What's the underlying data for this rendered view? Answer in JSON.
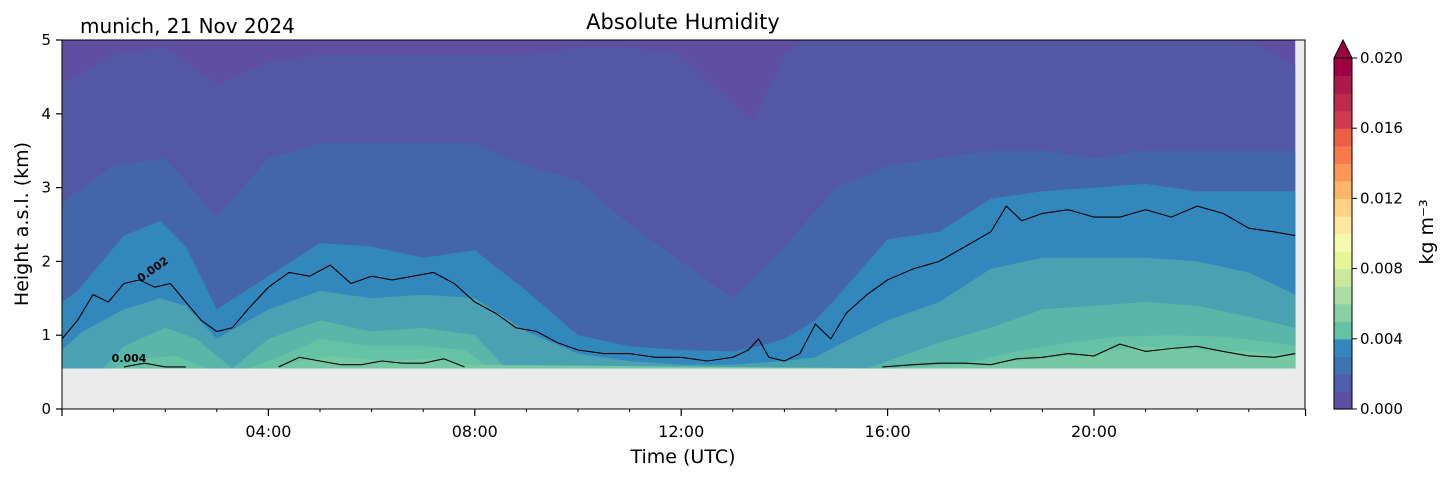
{
  "location_date": "munich, 21 Nov 2024",
  "chart_data": {
    "type": "contour",
    "title": "Absolute Humidity",
    "xlabel": "Time (UTC)",
    "ylabel": "Height a.s.l. (km)",
    "xlim_hours": [
      0,
      24.15
    ],
    "ylim": [
      0,
      5
    ],
    "x_ticks": [
      "04:00",
      "08:00",
      "12:00",
      "16:00",
      "20:00"
    ],
    "y_ticks": [
      "0",
      "1",
      "2",
      "3",
      "4",
      "5"
    ],
    "min_data_height_km": 0.55,
    "colorbar": {
      "label": "kg m⁻³",
      "min": 0,
      "max": 0.02,
      "ticks": [
        "0.000",
        "0.004",
        "0.008",
        "0.012",
        "0.016",
        "0.020"
      ],
      "extend": "max",
      "colormap": "Spectral_r"
    },
    "fill_colors": [
      "#5e4fa2",
      "#5357a6",
      "#4565ab",
      "#3579b4",
      "#3288bd",
      "#4aa1b1",
      "#66c2a5"
    ],
    "no_data_color": "#ebebeb",
    "fill_bands": [
      {
        "level": 0.0015,
        "x_hours": [
          0,
          0.3,
          1.2,
          1.9,
          2.4,
          3.0,
          4.0,
          5.0,
          6.0,
          7.0,
          8.0,
          9.0,
          10.0,
          11.0,
          12.0,
          13.0,
          13.5,
          14.0,
          14.6,
          15.0,
          16.0,
          17.0,
          18.0,
          19.0,
          20.0,
          21.0,
          22.0,
          23.0,
          23.9
        ],
        "y_km": [
          1.45,
          1.6,
          2.35,
          2.55,
          2.2,
          1.35,
          1.8,
          2.25,
          2.2,
          2.05,
          2.15,
          1.6,
          1.0,
          0.85,
          0.8,
          0.78,
          0.85,
          0.95,
          1.2,
          1.5,
          2.3,
          2.4,
          2.85,
          2.95,
          3.0,
          3.05,
          2.95,
          2.95,
          2.95
        ]
      },
      {
        "level": 0.0025,
        "x_hours": [
          0,
          0.4,
          1.2,
          1.9,
          2.4,
          3.0,
          4.0,
          5.0,
          6.0,
          7.0,
          8.0,
          9.0,
          10.0,
          11.0,
          12.0,
          13.0,
          14.0,
          14.6,
          15.0,
          16.0,
          17.0,
          18.0,
          19.0,
          20.0,
          21.0,
          22.0,
          23.0,
          23.9
        ],
        "y_km": [
          0.8,
          1.05,
          1.35,
          1.5,
          1.4,
          0.95,
          1.35,
          1.6,
          1.5,
          1.55,
          1.5,
          1.05,
          0.75,
          0.65,
          0.6,
          0.6,
          0.65,
          0.7,
          0.85,
          1.2,
          1.45,
          1.9,
          2.05,
          2.05,
          2.05,
          2.0,
          1.85,
          1.55
        ]
      },
      {
        "level": 0.0035,
        "x_hours": [
          0.8,
          1.2,
          2.0,
          2.6,
          3.3,
          4.0,
          5.0,
          6.0,
          7.0,
          8.0,
          8.6,
          15.6,
          16.2,
          17.0,
          18.0,
          19.0,
          20.0,
          21.0,
          22.0,
          23.0,
          23.9
        ],
        "y_km": [
          0.55,
          0.85,
          1.1,
          0.95,
          0.55,
          0.95,
          1.2,
          1.05,
          1.1,
          1.0,
          0.55,
          0.55,
          0.7,
          0.9,
          1.1,
          1.35,
          1.4,
          1.45,
          1.4,
          1.25,
          1.1
        ]
      },
      {
        "level": 0.0045,
        "x_hours": [
          1.0,
          1.5,
          2.2,
          2.8,
          3.6,
          4.2,
          5.0,
          6.0,
          7.0,
          7.8,
          8.3,
          15.9,
          16.5,
          17.5,
          18.5,
          19.5,
          20.5,
          21.5,
          22.5,
          23.5,
          23.9
        ],
        "y_km": [
          0.55,
          0.68,
          0.72,
          0.55,
          0.55,
          0.7,
          0.95,
          0.85,
          0.85,
          0.8,
          0.55,
          0.55,
          0.58,
          0.62,
          0.78,
          0.9,
          0.98,
          1.0,
          0.98,
          0.9,
          0.85
        ]
      },
      {
        "level": 0.0055,
        "x_hours": [
          4.2,
          4.6,
          5.2,
          6.2,
          7.2,
          7.9,
          16.2,
          17.0,
          18.0,
          19.0,
          20.0,
          21.0,
          22.0,
          23.0,
          23.9
        ],
        "y_km": [
          0.55,
          0.65,
          0.72,
          0.65,
          0.68,
          0.6,
          0.55,
          0.58,
          0.62,
          0.68,
          0.75,
          0.85,
          0.8,
          0.78,
          0.72
        ]
      },
      {
        "level": 0.0012,
        "x_hours": [
          0,
          1.0,
          2.0,
          3.0,
          4.0,
          5.0,
          6.0,
          7.0,
          8.0,
          9.0,
          10.0,
          11.0,
          12.0,
          13.0,
          14.0,
          15.0,
          16.0,
          17.0,
          18.0,
          19.0,
          20.0,
          21.0,
          22.0,
          23.0,
          23.9
        ],
        "y_km": [
          2.8,
          3.3,
          3.4,
          2.6,
          3.4,
          3.6,
          3.6,
          3.6,
          3.6,
          3.3,
          3.1,
          2.5,
          2.0,
          1.5,
          2.2,
          3.0,
          3.3,
          3.4,
          3.5,
          3.5,
          3.4,
          3.5,
          3.5,
          3.5,
          3.5
        ]
      },
      {
        "level": 0.0008,
        "x_hours": [
          0,
          1.0,
          2.0,
          3.0,
          4.0,
          5.0,
          6.0,
          7.0,
          8.0,
          9.0,
          10.0,
          11.0,
          12.0,
          12.6,
          13.4,
          14.0,
          14.4,
          15.0,
          16.0,
          17.0,
          18.0,
          19.0,
          20.0,
          21.0,
          22.0,
          23.0,
          23.9
        ],
        "y_km": [
          4.4,
          4.8,
          4.9,
          4.4,
          4.7,
          4.8,
          4.8,
          4.8,
          4.8,
          4.8,
          4.9,
          4.9,
          4.8,
          4.4,
          3.9,
          4.8,
          5.0,
          5.0,
          5.0,
          5.0,
          5.0,
          5.0,
          5.0,
          5.0,
          5.0,
          5.0,
          4.65
        ]
      }
    ],
    "contour_lines": [
      {
        "label": "0.002",
        "x_hours": [
          0,
          0.3,
          0.6,
          0.9,
          1.2,
          1.5,
          1.8,
          2.1,
          2.4,
          2.7,
          3.0,
          3.3,
          3.6,
          4.0,
          4.4,
          4.8,
          5.2,
          5.6,
          6.0,
          6.4,
          6.8,
          7.2,
          7.6,
          8.0,
          8.4,
          8.8,
          9.2,
          9.6,
          10.0,
          10.5,
          11.0,
          11.5,
          12.0,
          12.5,
          13.0,
          13.3,
          13.5,
          13.7,
          14.0,
          14.3,
          14.6,
          14.9,
          15.2,
          15.6,
          16.0,
          16.5,
          17.0,
          17.5,
          18.0,
          18.3,
          18.6,
          19.0,
          19.5,
          20.0,
          20.5,
          21.0,
          21.5,
          22.0,
          22.5,
          23.0,
          23.5,
          23.9
        ],
        "y_km": [
          0.95,
          1.2,
          1.55,
          1.45,
          1.7,
          1.75,
          1.65,
          1.7,
          1.45,
          1.2,
          1.05,
          1.1,
          1.35,
          1.65,
          1.85,
          1.8,
          1.95,
          1.7,
          1.8,
          1.75,
          1.8,
          1.85,
          1.7,
          1.45,
          1.3,
          1.1,
          1.05,
          0.9,
          0.8,
          0.75,
          0.75,
          0.7,
          0.7,
          0.65,
          0.7,
          0.8,
          0.95,
          0.7,
          0.65,
          0.75,
          1.15,
          0.95,
          1.3,
          1.55,
          1.75,
          1.9,
          2.0,
          2.2,
          2.4,
          2.75,
          2.55,
          2.65,
          2.7,
          2.6,
          2.6,
          2.7,
          2.6,
          2.75,
          2.65,
          2.45,
          2.4,
          2.35
        ]
      },
      {
        "label": "0.004",
        "x_hours": [
          1.2,
          1.6,
          2.0,
          2.4
        ],
        "y_km": [
          0.57,
          0.62,
          0.57,
          0.57
        ]
      },
      {
        "label": "",
        "x_hours": [
          4.2,
          4.6,
          5.0,
          5.4,
          5.8,
          6.2,
          6.6,
          7.0,
          7.4,
          7.8
        ],
        "y_km": [
          0.57,
          0.7,
          0.65,
          0.6,
          0.6,
          0.65,
          0.62,
          0.62,
          0.68,
          0.57
        ]
      },
      {
        "label": "",
        "x_hours": [
          15.9,
          16.5,
          17.0,
          17.5,
          18.0,
          18.5,
          19.0,
          19.5,
          20.0,
          20.5,
          21.0,
          21.5,
          22.0,
          22.5,
          23.0,
          23.5,
          23.9
        ],
        "y_km": [
          0.57,
          0.6,
          0.62,
          0.62,
          0.6,
          0.68,
          0.7,
          0.75,
          0.72,
          0.88,
          0.78,
          0.82,
          0.85,
          0.78,
          0.72,
          0.7,
          0.75
        ]
      }
    ],
    "contour_label_positions_hours_km": [
      {
        "text": "0.002",
        "x_hours": 1.8,
        "y_km": 1.85,
        "angle_deg": -35
      },
      {
        "text": "0.004",
        "x_hours": 1.3,
        "y_km": 0.64,
        "angle_deg": 0
      }
    ]
  }
}
